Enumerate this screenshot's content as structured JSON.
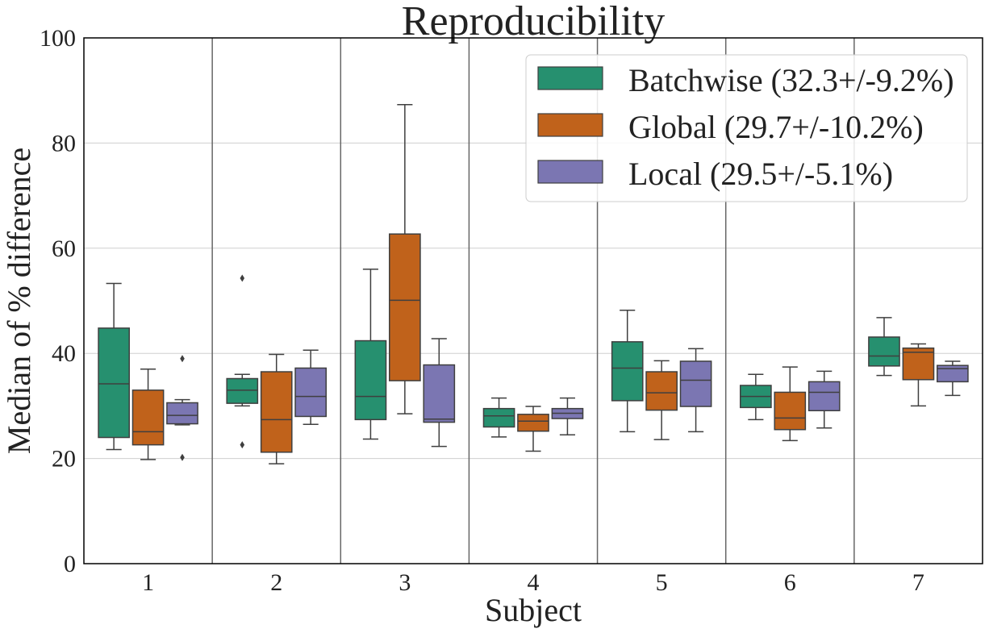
{
  "chart_data": {
    "type": "boxplot",
    "title": "Reproducibility",
    "xlabel": "Subject",
    "ylabel": "Median of % difference",
    "ylim": [
      0,
      100
    ],
    "yticks": [
      0,
      20,
      40,
      60,
      80,
      100
    ],
    "categories": [
      "1",
      "2",
      "3",
      "4",
      "5",
      "6",
      "7"
    ],
    "grid": "horizontal",
    "legend_position": "top-right",
    "series": [
      {
        "name": "Batchwise",
        "legend_label": "Batchwise (32.3+/-9.2%)",
        "color": "#26906f",
        "boxes": [
          {
            "whislo": 21.7,
            "q1": 24.0,
            "med": 34.2,
            "q3": 44.8,
            "whishi": 53.3,
            "fliers": []
          },
          {
            "whislo": 30.0,
            "q1": 30.5,
            "med": 33.0,
            "q3": 35.2,
            "whishi": 36.0,
            "fliers": [
              54.3,
              22.6
            ]
          },
          {
            "whislo": 23.7,
            "q1": 27.4,
            "med": 31.8,
            "q3": 42.4,
            "whishi": 56.0,
            "fliers": []
          },
          {
            "whislo": 24.1,
            "q1": 26.0,
            "med": 28.1,
            "q3": 29.5,
            "whishi": 31.5,
            "fliers": []
          },
          {
            "whislo": 25.1,
            "q1": 31.0,
            "med": 37.2,
            "q3": 42.2,
            "whishi": 48.2,
            "fliers": []
          },
          {
            "whislo": 27.4,
            "q1": 29.7,
            "med": 31.8,
            "q3": 33.9,
            "whishi": 36.0,
            "fliers": []
          },
          {
            "whislo": 35.8,
            "q1": 37.6,
            "med": 39.5,
            "q3": 43.1,
            "whishi": 46.8,
            "fliers": []
          }
        ]
      },
      {
        "name": "Global",
        "legend_label": "Global (29.7+/-10.2%)",
        "color": "#c0621b",
        "boxes": [
          {
            "whislo": 19.8,
            "q1": 22.6,
            "med": 25.1,
            "q3": 33.0,
            "whishi": 37.0,
            "fliers": []
          },
          {
            "whislo": 19.0,
            "q1": 21.2,
            "med": 27.4,
            "q3": 36.5,
            "whishi": 39.8,
            "fliers": []
          },
          {
            "whislo": 28.5,
            "q1": 34.8,
            "med": 50.1,
            "q3": 62.7,
            "whishi": 87.3,
            "fliers": []
          },
          {
            "whislo": 21.4,
            "q1": 25.2,
            "med": 27.1,
            "q3": 28.4,
            "whishi": 29.9,
            "fliers": []
          },
          {
            "whislo": 23.6,
            "q1": 29.2,
            "med": 32.5,
            "q3": 36.5,
            "whishi": 38.6,
            "fliers": []
          },
          {
            "whislo": 23.4,
            "q1": 25.5,
            "med": 27.7,
            "q3": 32.6,
            "whishi": 37.4,
            "fliers": []
          },
          {
            "whislo": 30.0,
            "q1": 35.0,
            "med": 40.2,
            "q3": 41.0,
            "whishi": 41.8,
            "fliers": []
          }
        ]
      },
      {
        "name": "Local",
        "legend_label": "Local (29.5+/-5.1%)",
        "color": "#7b76b2",
        "boxes": [
          {
            "whislo": 26.4,
            "q1": 26.6,
            "med": 28.2,
            "q3": 30.6,
            "whishi": 31.2,
            "fliers": [
              39.0,
              20.2
            ]
          },
          {
            "whislo": 26.5,
            "q1": 28.0,
            "med": 31.8,
            "q3": 37.2,
            "whishi": 40.6,
            "fliers": []
          },
          {
            "whislo": 22.3,
            "q1": 26.9,
            "med": 27.5,
            "q3": 37.8,
            "whishi": 42.8,
            "fliers": []
          },
          {
            "whislo": 24.5,
            "q1": 27.6,
            "med": 28.6,
            "q3": 29.5,
            "whishi": 31.5,
            "fliers": []
          },
          {
            "whislo": 25.1,
            "q1": 29.9,
            "med": 34.9,
            "q3": 38.5,
            "whishi": 40.9,
            "fliers": []
          },
          {
            "whislo": 25.8,
            "q1": 29.1,
            "med": 32.6,
            "q3": 34.6,
            "whishi": 36.6,
            "fliers": []
          },
          {
            "whislo": 32.0,
            "q1": 34.6,
            "med": 37.1,
            "q3": 37.7,
            "whishi": 38.5,
            "fliers": []
          }
        ]
      }
    ]
  }
}
